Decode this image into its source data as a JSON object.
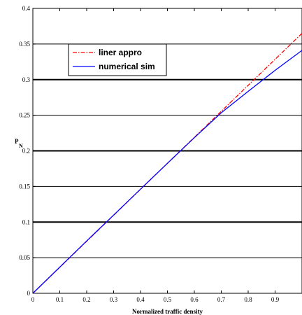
{
  "chart_data": {
    "type": "line",
    "xlabel": "Normalized traffic density",
    "ylabel_main": "P",
    "ylabel_sub": "N",
    "xlim": [
      0,
      1
    ],
    "ylim": [
      0,
      0.4
    ],
    "xticks": [
      0,
      0.1,
      0.2,
      0.3,
      0.4,
      0.5,
      0.6,
      0.7,
      0.8,
      0.9
    ],
    "xtick_labels": [
      "0",
      "0.1",
      "0.2",
      "0.3",
      "0.4",
      "0.5",
      "0.6",
      "0.7",
      "0.8",
      "0.9"
    ],
    "yticks": [
      0,
      0.05,
      0.1,
      0.15,
      0.2,
      0.25,
      0.3,
      0.35,
      0.4
    ],
    "ytick_labels": [
      "0",
      "0.05",
      "0.1",
      "0.15",
      "0.2",
      "0.25",
      "0.3",
      "0.35",
      "0.4"
    ],
    "grid": "horizontal",
    "legend_position": "top-left",
    "series": [
      {
        "name": "liner appro",
        "color": "#ff0000",
        "style": "dashdot",
        "x": [
          0,
          0.1,
          0.2,
          0.3,
          0.4,
          0.5,
          0.6,
          0.7,
          0.8,
          0.9,
          1.0
        ],
        "y": [
          0,
          0.0365,
          0.073,
          0.1095,
          0.146,
          0.1825,
          0.219,
          0.2555,
          0.292,
          0.3285,
          0.365
        ]
      },
      {
        "name": "numerical sim",
        "color": "#0000ff",
        "style": "solid",
        "x": [
          0,
          0.1,
          0.2,
          0.3,
          0.4,
          0.5,
          0.6,
          0.7,
          0.8,
          0.9,
          1.0
        ],
        "y": [
          0,
          0.0368,
          0.0735,
          0.1098,
          0.1462,
          0.1825,
          0.2185,
          0.2535,
          0.2835,
          0.313,
          0.341
        ]
      }
    ]
  }
}
